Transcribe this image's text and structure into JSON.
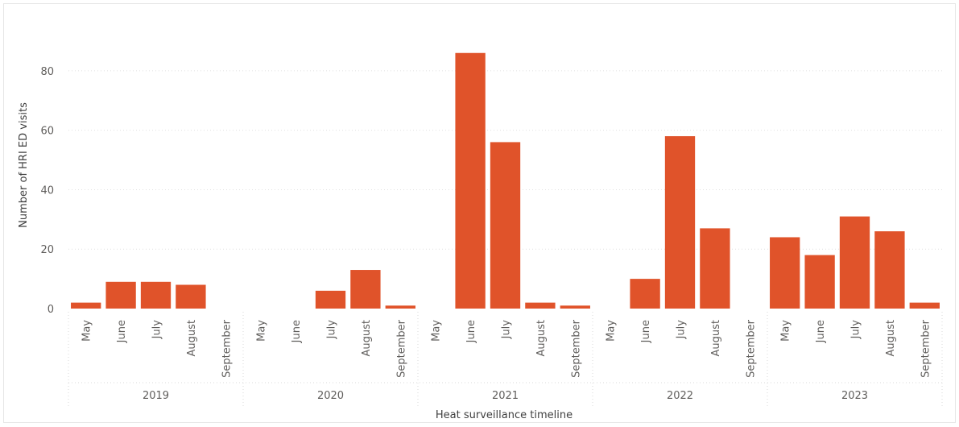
{
  "chart_data": {
    "type": "bar",
    "title": "",
    "xlabel": "Heat surveillance timeline",
    "ylabel": "Number of HRI ED visits",
    "ylim": [
      0,
      90
    ],
    "yticks": [
      0,
      20,
      40,
      60,
      80
    ],
    "grid": true,
    "bar_color": "#e0532a",
    "groups": [
      {
        "year": "2019",
        "months": [
          "May",
          "June",
          "July",
          "August",
          "September"
        ],
        "values": [
          2,
          9,
          9,
          8,
          0
        ]
      },
      {
        "year": "2020",
        "months": [
          "May",
          "June",
          "July",
          "August",
          "September"
        ],
        "values": [
          0,
          0,
          6,
          13,
          1
        ]
      },
      {
        "year": "2021",
        "months": [
          "May",
          "June",
          "July",
          "August",
          "September"
        ],
        "values": [
          0,
          86,
          56,
          2,
          1
        ]
      },
      {
        "year": "2022",
        "months": [
          "May",
          "June",
          "July",
          "August",
          "September"
        ],
        "values": [
          0,
          10,
          58,
          27,
          0
        ]
      },
      {
        "year": "2023",
        "months": [
          "May",
          "June",
          "July",
          "August",
          "September"
        ],
        "values": [
          24,
          18,
          31,
          26,
          2
        ]
      }
    ]
  }
}
